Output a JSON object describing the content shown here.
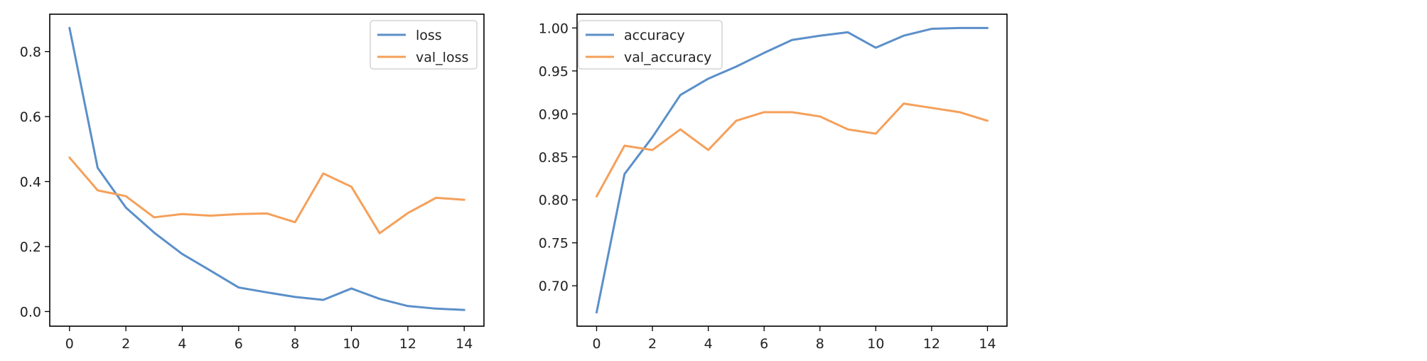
{
  "colors": {
    "series_1": "#5b8fc9",
    "series_2": "#f5a05a"
  },
  "chart_data": [
    {
      "type": "line",
      "title": "",
      "xlabel": "",
      "ylabel": "",
      "xlim": [
        -0.7,
        14.7
      ],
      "ylim": [
        -0.045,
        0.915
      ],
      "xticks": [
        0,
        2,
        4,
        6,
        8,
        10,
        12,
        14
      ],
      "xtick_labels": [
        "0",
        "2",
        "4",
        "6",
        "8",
        "10",
        "12",
        "14"
      ],
      "yticks": [
        0.0,
        0.2,
        0.4,
        0.6,
        0.8
      ],
      "ytick_labels": [
        "0.0",
        "0.2",
        "0.4",
        "0.6",
        "0.8"
      ],
      "grid": false,
      "legend_position": "top-right",
      "x": [
        0,
        1,
        2,
        3,
        4,
        5,
        6,
        7,
        8,
        9,
        10,
        11,
        12,
        13,
        14
      ],
      "series": [
        {
          "name": "loss",
          "color_key": "series_1",
          "values": [
            0.873,
            0.442,
            0.32,
            0.243,
            0.177,
            0.126,
            0.074,
            0.059,
            0.045,
            0.036,
            0.071,
            0.039,
            0.017,
            0.009,
            0.005
          ]
        },
        {
          "name": "val_loss",
          "color_key": "series_2",
          "values": [
            0.474,
            0.373,
            0.355,
            0.29,
            0.3,
            0.295,
            0.3,
            0.302,
            0.275,
            0.425,
            0.384,
            0.241,
            0.303,
            0.35,
            0.344
          ]
        }
      ]
    },
    {
      "type": "line",
      "title": "",
      "xlabel": "",
      "ylabel": "",
      "xlim": [
        -0.7,
        14.7
      ],
      "ylim": [
        0.653,
        1.016
      ],
      "xticks": [
        0,
        2,
        4,
        6,
        8,
        10,
        12,
        14
      ],
      "xtick_labels": [
        "0",
        "2",
        "4",
        "6",
        "8",
        "10",
        "12",
        "14"
      ],
      "yticks": [
        0.7,
        0.75,
        0.8,
        0.85,
        0.9,
        0.95,
        1.0
      ],
      "ytick_labels": [
        "0.70",
        "0.75",
        "0.80",
        "0.85",
        "0.90",
        "0.95",
        "1.00"
      ],
      "grid": false,
      "legend_position": "top-left",
      "x": [
        0,
        1,
        2,
        3,
        4,
        5,
        6,
        7,
        8,
        9,
        10,
        11,
        12,
        13,
        14
      ],
      "series": [
        {
          "name": "accuracy",
          "color_key": "series_1",
          "values": [
            0.669,
            0.83,
            0.873,
            0.922,
            0.941,
            0.955,
            0.971,
            0.986,
            0.991,
            0.995,
            0.977,
            0.991,
            0.999,
            1.0,
            1.0
          ]
        },
        {
          "name": "val_accuracy",
          "color_key": "series_2",
          "values": [
            0.804,
            0.863,
            0.858,
            0.882,
            0.858,
            0.892,
            0.902,
            0.902,
            0.897,
            0.882,
            0.877,
            0.912,
            0.907,
            0.902,
            0.892
          ]
        }
      ]
    }
  ]
}
